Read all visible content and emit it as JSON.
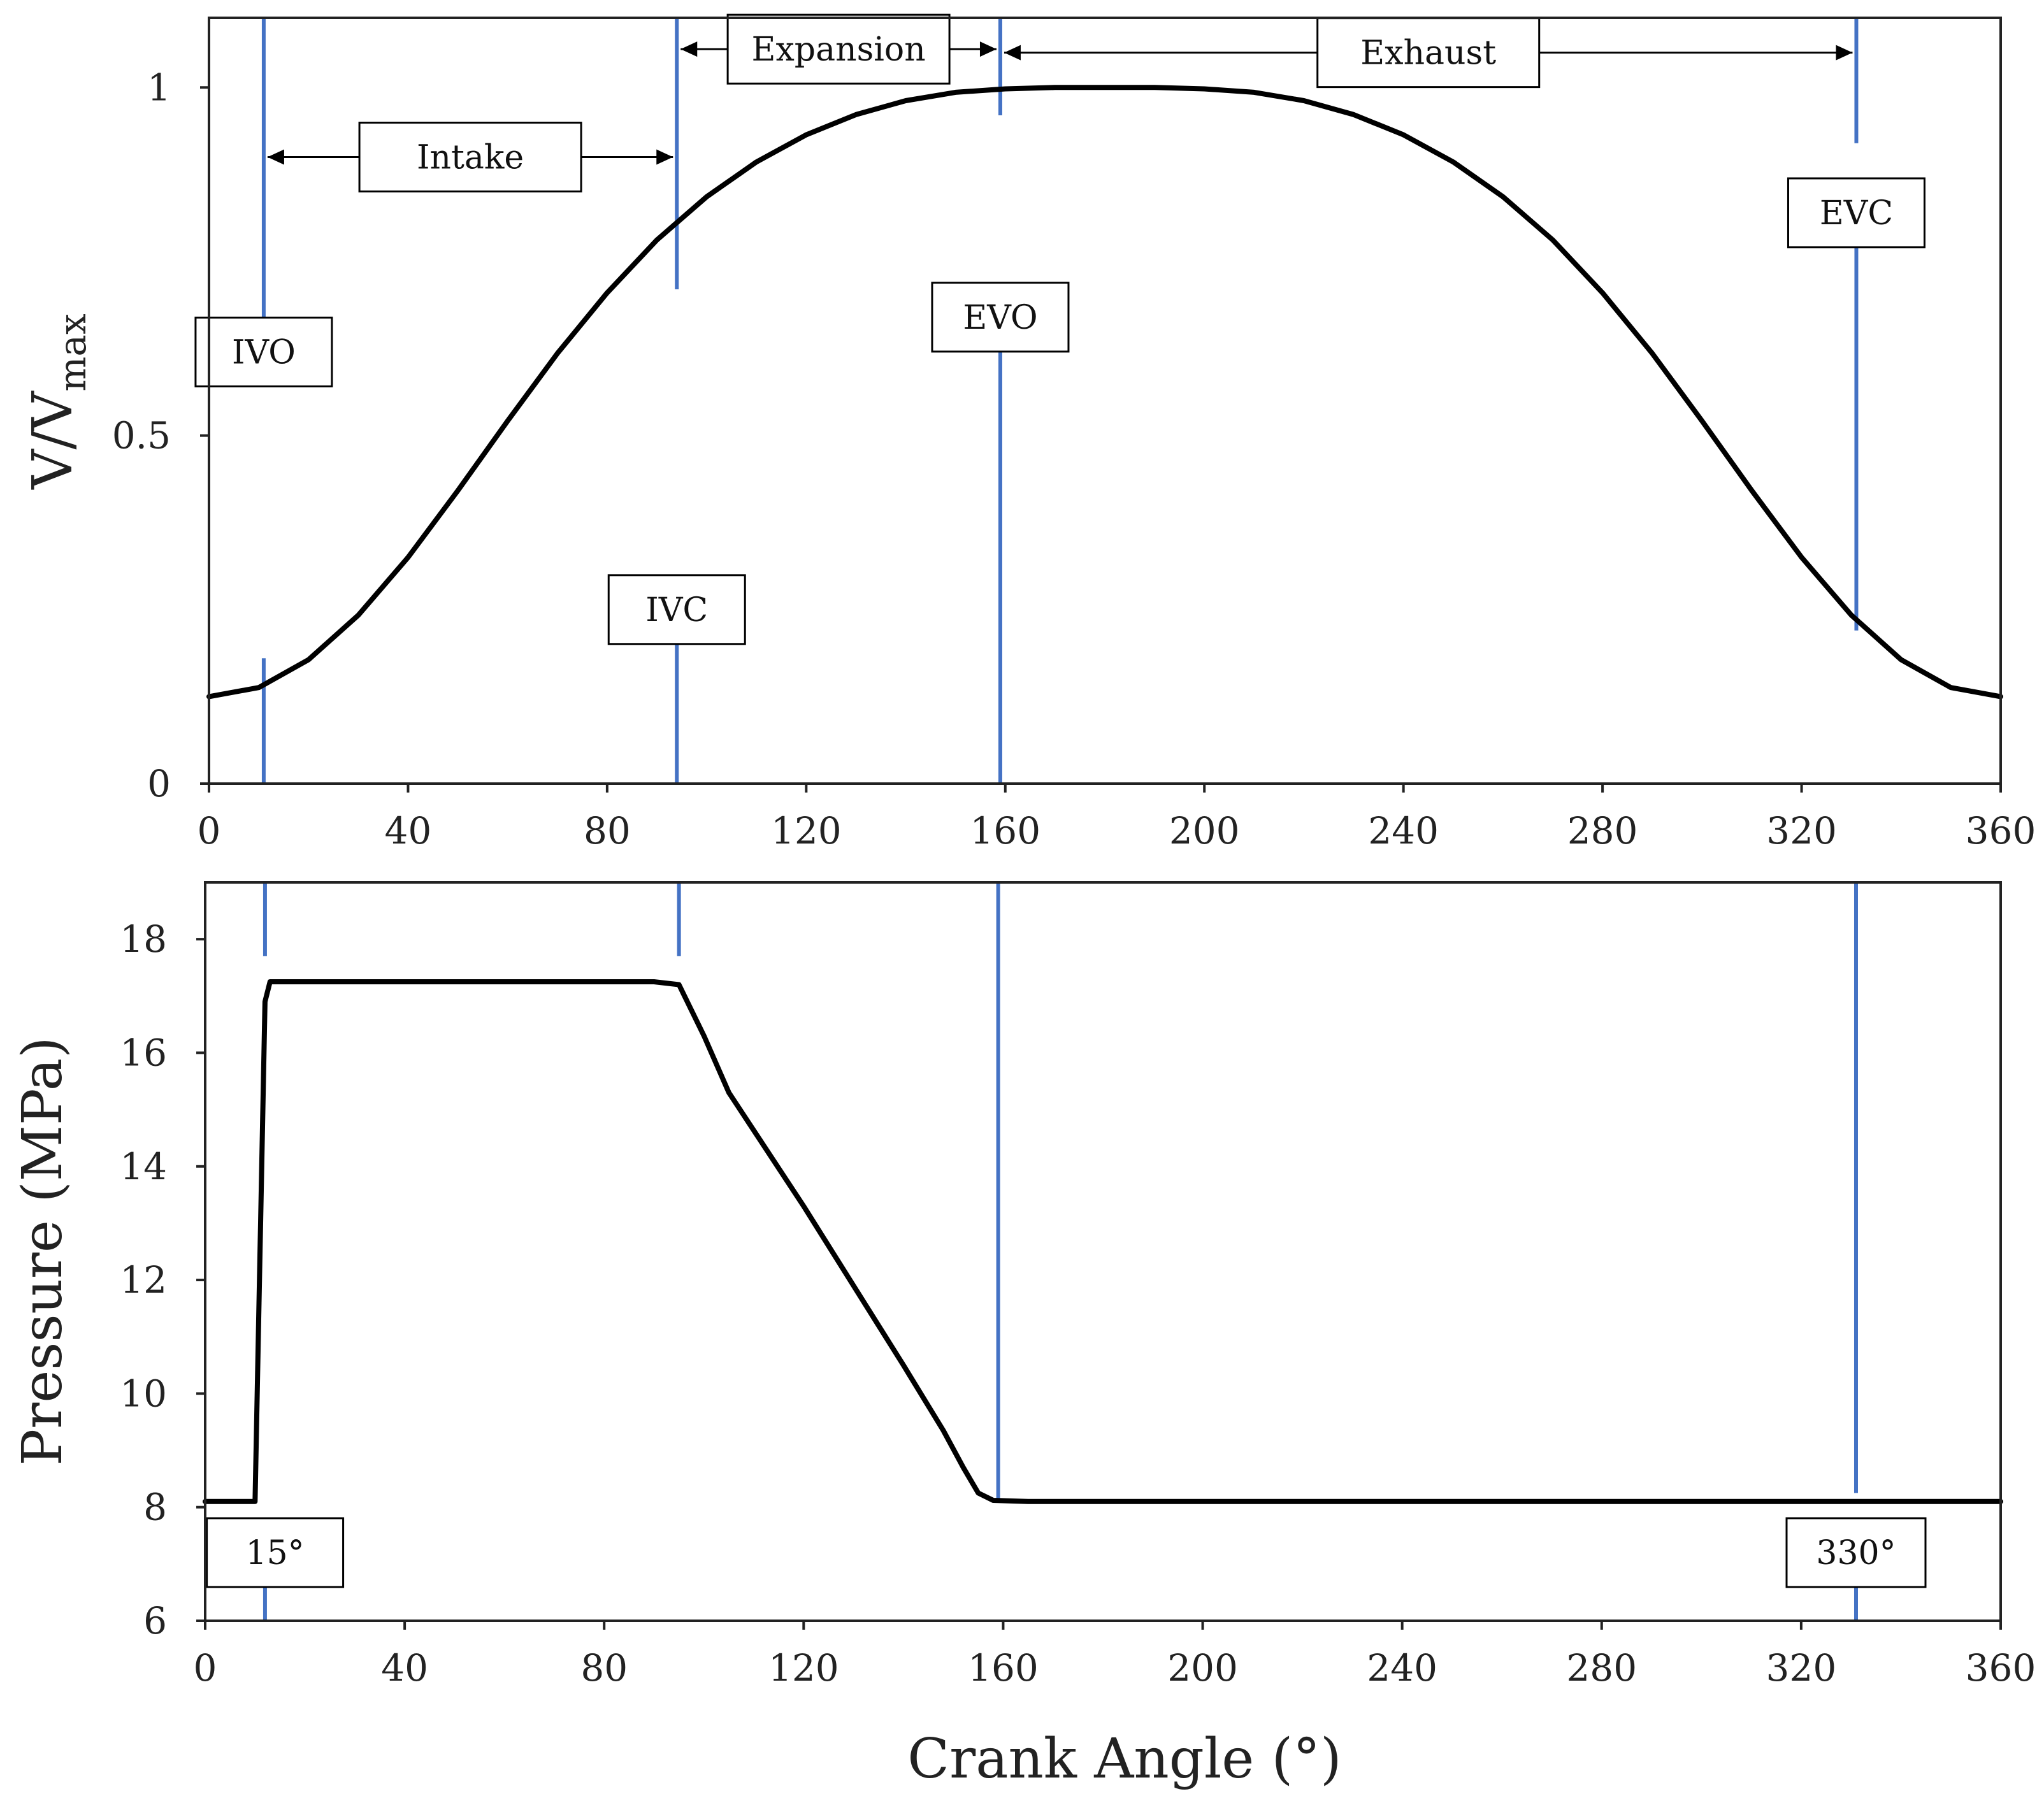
{
  "chart_data": [
    {
      "type": "line",
      "xlim": [
        0,
        360
      ],
      "ylim": [
        0,
        1.1
      ],
      "x_ticks": [
        0,
        40,
        80,
        120,
        160,
        200,
        240,
        280,
        320,
        360
      ],
      "y_ticks": [
        0,
        0.5,
        1
      ],
      "y_tick_labels": [
        "0",
        "0.5",
        "1"
      ],
      "ylabel_main": "V/V",
      "ylabel_sub": "max",
      "grid": false,
      "series": [
        {
          "x": [
            0,
            10,
            20,
            30,
            40,
            50,
            60,
            70,
            80,
            90,
            100,
            110,
            120,
            130,
            140,
            150,
            160,
            170,
            180,
            190,
            200,
            210,
            220,
            230,
            240,
            250,
            260,
            270,
            280,
            290,
            300,
            310,
            320,
            330,
            340,
            350,
            360
          ],
          "y": [
            0.125,
            0.138,
            0.178,
            0.242,
            0.325,
            0.421,
            0.521,
            0.618,
            0.705,
            0.781,
            0.843,
            0.893,
            0.932,
            0.961,
            0.981,
            0.993,
            0.998,
            1.0,
            1.0,
            1.0,
            0.998,
            0.993,
            0.981,
            0.961,
            0.932,
            0.893,
            0.843,
            0.781,
            0.705,
            0.618,
            0.521,
            0.421,
            0.325,
            0.242,
            0.178,
            0.138,
            0.125
          ]
        }
      ],
      "vlines": [
        {
          "x": 11,
          "ranges": [
            [
              0,
              0.18
            ],
            [
              0.6,
              1.1
            ]
          ]
        },
        {
          "x": 94,
          "ranges": [
            [
              0,
              0.27
            ],
            [
              0.71,
              1.1
            ]
          ]
        },
        {
          "x": 159,
          "ranges": [
            [
              0,
              0.62
            ],
            [
              0.96,
              1.1
            ]
          ]
        },
        {
          "x": 331,
          "ranges": [
            [
              0.22,
              0.87
            ],
            [
              0.92,
              1.1
            ]
          ]
        }
      ],
      "labels": [
        {
          "text": "IVO",
          "x": 11,
          "y": 0.62
        },
        {
          "text": "IVC",
          "x": 94,
          "y": 0.25
        },
        {
          "text": "EVO",
          "x": 159,
          "y": 0.67
        },
        {
          "text": "EVC",
          "x": 331,
          "y": 0.82
        }
      ],
      "phases": [
        {
          "text": "Intake",
          "x1": 11,
          "x2": 94,
          "y": 0.9
        },
        {
          "text": "Expansion",
          "x1": 94,
          "x2": 159,
          "y": 1.055
        },
        {
          "text": "Exhaust",
          "x1": 159,
          "x2": 331,
          "y": 1.05
        }
      ]
    },
    {
      "type": "line",
      "xlim": [
        0,
        360
      ],
      "ylim": [
        6,
        19
      ],
      "x_ticks": [
        0,
        40,
        80,
        120,
        160,
        200,
        240,
        280,
        320,
        360
      ],
      "y_ticks": [
        6,
        8,
        10,
        12,
        14,
        16,
        18
      ],
      "ylabel": "Pressure (MPa)",
      "xlabel": "Crank Angle (°)",
      "grid": false,
      "series": [
        {
          "x": [
            0,
            9,
            10,
            12,
            13,
            20,
            40,
            60,
            80,
            90,
            95,
            100,
            105,
            120,
            130,
            140,
            148,
            152,
            155,
            158,
            165,
            200,
            300,
            360
          ],
          "y": [
            8.1,
            8.1,
            8.1,
            16.9,
            17.25,
            17.25,
            17.25,
            17.25,
            17.25,
            17.25,
            17.2,
            16.3,
            15.3,
            13.3,
            11.9,
            10.5,
            9.35,
            8.7,
            8.25,
            8.12,
            8.1,
            8.1,
            8.1,
            8.1
          ]
        }
      ],
      "vlines": [
        {
          "x": 12,
          "ranges": [
            [
              17.7,
              19
            ],
            [
              6,
              6.9
            ]
          ]
        },
        {
          "x": 95,
          "ranges": [
            [
              17.7,
              19
            ]
          ]
        },
        {
          "x": 159,
          "ranges": [
            [
              8.15,
              19
            ]
          ]
        },
        {
          "x": 331,
          "ranges": [
            [
              8.25,
              19
            ],
            [
              6,
              6.9
            ]
          ]
        }
      ],
      "labels": [
        {
          "text": "15°",
          "x": 14,
          "y": 7.2
        },
        {
          "text": "330°",
          "x": 331,
          "y": 7.2
        }
      ]
    }
  ],
  "colors": {
    "curve": "#000000",
    "marker_line": "#4472C4",
    "axis": "#222222"
  }
}
